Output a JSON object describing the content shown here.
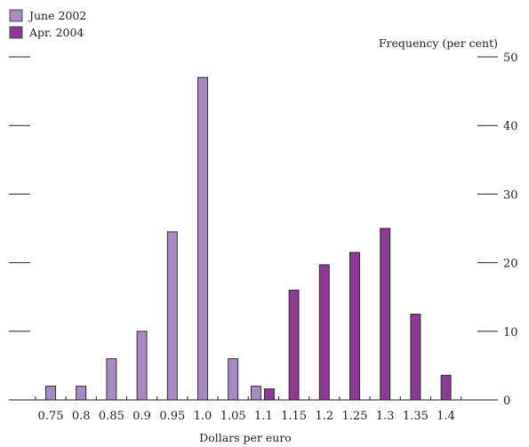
{
  "chart_data": {
    "type": "bar",
    "xlabel": "Dollars per euro",
    "ylabel": "Frequency (per cent)",
    "ylim": [
      0,
      50
    ],
    "yticks": [
      0,
      10,
      20,
      30,
      40,
      50
    ],
    "grid": false,
    "legend_position": "top-left",
    "categories": [
      "0.75",
      "0.8",
      "0.85",
      "0.9",
      "0.95",
      "1.0",
      "1.05",
      "1.1",
      "1.15",
      "1.2",
      "1.25",
      "1.3",
      "1.35",
      "1.4"
    ],
    "series": [
      {
        "name": "June 2002",
        "color": "#a58bc2",
        "values": [
          2,
          2,
          6,
          10,
          24.5,
          47,
          6,
          2,
          0,
          0,
          0,
          0,
          0,
          0
        ]
      },
      {
        "name": "Apr. 2004",
        "color": "#8c3b94",
        "values": [
          0,
          0,
          0,
          0,
          0,
          0,
          0,
          1.6,
          16,
          19.7,
          21.5,
          25,
          12.5,
          3.6
        ]
      }
    ]
  }
}
